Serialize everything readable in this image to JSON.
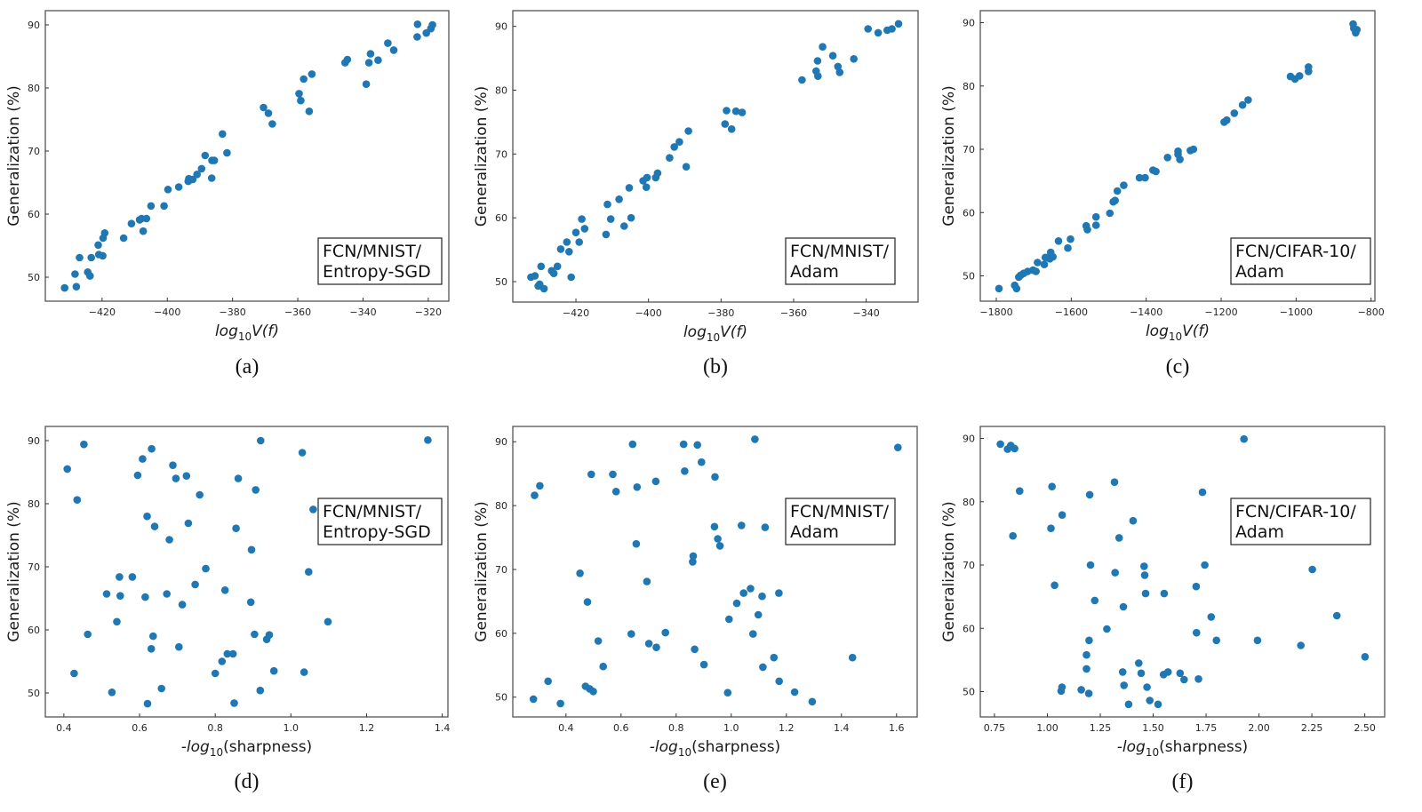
{
  "colors": {
    "marker": "#1f77b4",
    "frame": "#555555",
    "text": "#1a1a1a"
  },
  "chart_data": [
    {
      "id": "a",
      "type": "scatter",
      "caption": "(a)",
      "annotation": [
        "FCN/MNIST/",
        "Entropy-SGD"
      ],
      "ylabel": "Generalization (%)",
      "xlabel": {
        "prefix": "log",
        "sub": "10",
        "suffix": "V(f)"
      },
      "xlim": [
        -437.4,
        -313.7
      ],
      "ylim": [
        46.2,
        92.25
      ],
      "xticks": [
        -420,
        -400,
        -380,
        -360,
        -340,
        -320
      ],
      "xtick_labels": [
        "−420",
        "−400",
        "−380",
        "−360",
        "−340",
        "−320"
      ],
      "yticks": [
        50,
        60,
        70,
        80,
        90
      ],
      "ytick_labels": [
        "50",
        "60",
        "70",
        "80",
        "90"
      ],
      "annotation_position": "bottom-right",
      "x": [
        -431.5,
        -427.9,
        -428.3,
        -426.9,
        -424.4,
        -423.7,
        -423.3,
        -421.2,
        -421.0,
        -419.8,
        -419.7,
        -419.2,
        -413.4,
        -411.0,
        -408.5,
        -407.9,
        -406.4,
        -407.4,
        -405.0,
        -401.0,
        -399.8,
        -396.5,
        -393.6,
        -393.4,
        -392.2,
        -390.9,
        -389.5,
        -388.4,
        -386.3,
        -385.6,
        -386.4,
        -383.1,
        -381.7,
        -370.5,
        -369.0,
        -367.8,
        -359.6,
        -359.1,
        -356.5,
        -358.2,
        -355.7,
        -345.5,
        -344.8,
        -339.0,
        -338.2,
        -337.7,
        -335.4,
        -332.4,
        -330.6,
        -323.4,
        -323.3,
        -320.6,
        -319.2,
        -318.7
      ],
      "y": [
        48.3,
        48.5,
        50.5,
        53.1,
        50.8,
        50.2,
        53.1,
        55.1,
        53.6,
        53.4,
        56.2,
        57.0,
        56.2,
        58.5,
        59.1,
        59.3,
        59.3,
        57.3,
        61.3,
        61.3,
        63.9,
        64.3,
        65.2,
        65.6,
        65.5,
        66.3,
        67.2,
        69.3,
        68.5,
        68.5,
        65.7,
        72.7,
        69.7,
        76.9,
        76.0,
        74.3,
        79.1,
        78.0,
        76.3,
        81.4,
        82.2,
        84.0,
        84.5,
        80.6,
        84.0,
        85.4,
        84.4,
        87.1,
        86.0,
        88.1,
        90.1,
        88.7,
        89.4,
        90.0
      ]
    },
    {
      "id": "b",
      "type": "scatter",
      "caption": "(b)",
      "annotation": [
        "FCN/MNIST/",
        "Adam"
      ],
      "ylabel": "Generalization (%)",
      "xlabel": {
        "prefix": "log",
        "sub": "10",
        "suffix": "V(f)"
      },
      "xlim": [
        -437.4,
        -325.7
      ],
      "ylim": [
        46.8,
        92.46
      ],
      "xticks": [
        -420,
        -400,
        -380,
        -360,
        -340
      ],
      "xtick_labels": [
        "−420",
        "−400",
        "−380",
        "−360",
        "−340"
      ],
      "yticks": [
        50,
        60,
        70,
        80,
        90
      ],
      "ytick_labels": [
        "50",
        "60",
        "70",
        "80",
        "90"
      ],
      "annotation_position": "bottom-right",
      "x": [
        -432.4,
        -431.3,
        -430.4,
        -430.0,
        -428.8,
        -429.6,
        -426.7,
        -426.1,
        -425.1,
        -424.2,
        -422.5,
        -421.9,
        -421.3,
        -420.0,
        -419.1,
        -418.4,
        -417.6,
        -411.7,
        -411.3,
        -410.4,
        -408.1,
        -406.7,
        -405.3,
        -404.8,
        -401.5,
        -400.4,
        -400.6,
        -398.0,
        -397.5,
        -394.2,
        -392.9,
        -391.5,
        -389.6,
        -389.0,
        -378.9,
        -378.5,
        -377.1,
        -375.9,
        -374.2,
        -357.7,
        -353.8,
        -353.4,
        -353.3,
        -352.0,
        -349.2,
        -347.8,
        -347.3,
        -343.4,
        -339.5,
        -336.7,
        -334.2,
        -332.9,
        -331.1
      ],
      "y": [
        50.7,
        50.9,
        49.3,
        49.6,
        48.9,
        52.4,
        51.7,
        51.3,
        52.4,
        55.1,
        56.2,
        54.7,
        50.7,
        57.7,
        56.2,
        59.8,
        58.3,
        57.4,
        62.1,
        59.8,
        62.9,
        58.7,
        64.7,
        60.0,
        65.8,
        66.3,
        64.8,
        66.3,
        67.0,
        69.4,
        71.1,
        71.9,
        68.0,
        73.6,
        74.7,
        76.8,
        73.9,
        76.7,
        76.5,
        81.6,
        83.0,
        84.6,
        82.2,
        86.8,
        85.4,
        83.7,
        82.8,
        84.9,
        89.6,
        89.0,
        89.4,
        89.6,
        90.4
      ]
    },
    {
      "id": "c",
      "type": "scatter",
      "caption": "(c)",
      "annotation": [
        "FCN/CIFAR-10/",
        "Adam"
      ],
      "ylabel": "Generalization (%)",
      "xlabel": {
        "prefix": "log",
        "sub": "10",
        "suffix": "V(f)"
      },
      "xlim": [
        -1842.7,
        -789.8
      ],
      "ylim": [
        46.0,
        91.9
      ],
      "xticks": [
        -1800,
        -1600,
        -1400,
        -1200,
        -1000,
        -800
      ],
      "xtick_labels": [
        "−1800",
        "−1600",
        "−1400",
        "−1200",
        "−1000",
        "−800"
      ],
      "yticks": [
        50,
        60,
        70,
        80,
        90
      ],
      "ytick_labels": [
        "50",
        "60",
        "70",
        "80",
        "90"
      ],
      "annotation_position": "bottom-right",
      "x": [
        -1793,
        -1751,
        -1746,
        -1740,
        -1735,
        -1727,
        -1716,
        -1702,
        -1694,
        -1690,
        -1672,
        -1669,
        -1657,
        -1655,
        -1649,
        -1634,
        -1609,
        -1602,
        -1560,
        -1557,
        -1534,
        -1534,
        -1497,
        -1488,
        -1483,
        -1477,
        -1460,
        -1418,
        -1403,
        -1382,
        -1374,
        -1343,
        -1315,
        -1315,
        -1310,
        -1282,
        -1274,
        -1192,
        -1185,
        -1165,
        -1143,
        -1128,
        -1015,
        -1003,
        -991,
        -967,
        -967,
        -848,
        -846,
        -841,
        -838
      ],
      "y": [
        48.0,
        48.5,
        48.0,
        49.8,
        50.1,
        50.4,
        50.7,
        50.9,
        50.7,
        52.1,
        51.8,
        52.9,
        52.7,
        53.7,
        53.0,
        55.5,
        54.4,
        55.8,
        57.9,
        57.3,
        58.0,
        59.3,
        59.9,
        61.7,
        61.9,
        63.4,
        64.3,
        65.5,
        65.5,
        66.7,
        66.5,
        68.7,
        69.7,
        69.2,
        68.4,
        69.8,
        70.0,
        74.3,
        74.6,
        75.7,
        77.0,
        77.8,
        81.5,
        81.1,
        81.6,
        82.3,
        83.0,
        89.8,
        89.1,
        88.4,
        88.9
      ]
    },
    {
      "id": "d",
      "type": "scatter",
      "caption": "(d)",
      "annotation": [
        "FCN/MNIST/",
        "Entropy-SGD"
      ],
      "ylabel": "Generalization (%)",
      "xlabel": {
        "prefix": "-log",
        "sub": "10",
        "suffix": "(sharpness)"
      },
      "xlim": [
        0.351,
        1.415
      ],
      "ylim": [
        46.2,
        92.25
      ],
      "xticks": [
        0.4,
        0.6,
        0.8,
        1.0,
        1.2,
        1.4
      ],
      "xtick_labels": [
        "0.4",
        "0.6",
        "0.8",
        "1.0",
        "1.2",
        "1.4"
      ],
      "yticks": [
        50,
        60,
        70,
        80,
        90
      ],
      "ytick_labels": [
        "50",
        "60",
        "70",
        "80",
        "90"
      ],
      "annotation_position": "center-right",
      "x": [
        0.409,
        0.435,
        0.453,
        0.427,
        0.463,
        0.513,
        0.527,
        0.54,
        0.547,
        0.549,
        0.581,
        0.595,
        0.608,
        0.615,
        0.62,
        0.621,
        0.631,
        0.632,
        0.636,
        0.64,
        0.658,
        0.672,
        0.679,
        0.688,
        0.696,
        0.704,
        0.713,
        0.724,
        0.729,
        0.747,
        0.759,
        0.775,
        0.8,
        0.818,
        0.826,
        0.832,
        0.847,
        0.85,
        0.855,
        0.861,
        0.894,
        0.896,
        0.904,
        0.907,
        0.919,
        0.92,
        0.936,
        0.943,
        0.955,
        1.03,
        1.035,
        1.047,
        1.059,
        1.098,
        1.362
      ],
      "y": [
        85.5,
        80.6,
        89.4,
        53.1,
        59.3,
        65.7,
        50.1,
        61.3,
        68.4,
        65.4,
        68.4,
        84.5,
        87.1,
        65.2,
        78.0,
        48.3,
        57.0,
        88.7,
        59.0,
        76.4,
        50.7,
        65.7,
        74.3,
        86.1,
        84.0,
        57.3,
        64.0,
        84.4,
        76.9,
        67.2,
        81.4,
        69.7,
        53.1,
        55.0,
        66.3,
        56.2,
        56.2,
        48.4,
        76.1,
        84.0,
        64.4,
        72.7,
        59.3,
        82.2,
        50.4,
        90.0,
        58.5,
        59.2,
        53.5,
        88.1,
        53.3,
        69.2,
        79.1,
        61.3,
        90.1
      ]
    },
    {
      "id": "e",
      "type": "scatter",
      "caption": "(e)",
      "annotation": [
        "FCN/MNIST/",
        "Adam"
      ],
      "ylabel": "Generalization (%)",
      "xlabel": {
        "prefix": "-log",
        "sub": "10",
        "suffix": "(sharpness)"
      },
      "xlim": [
        0.207,
        1.675
      ],
      "ylim": [
        46.9,
        92.4
      ],
      "xticks": [
        0.4,
        0.6,
        0.8,
        1.0,
        1.2,
        1.4,
        1.6
      ],
      "xtick_labels": [
        "0.4",
        "0.6",
        "0.8",
        "1.0",
        "1.2",
        "1.4",
        "1.6"
      ],
      "yticks": [
        50,
        60,
        70,
        80,
        90
      ],
      "ytick_labels": [
        "50",
        "60",
        "70",
        "80",
        "90"
      ],
      "annotation_position": "center-right",
      "x": [
        0.282,
        0.286,
        0.305,
        0.335,
        0.38,
        0.451,
        0.471,
        0.478,
        0.486,
        0.499,
        0.492,
        0.517,
        0.535,
        0.57,
        0.582,
        0.637,
        0.642,
        0.655,
        0.658,
        0.694,
        0.701,
        0.726,
        0.728,
        0.761,
        0.827,
        0.831,
        0.86,
        0.862,
        0.867,
        0.877,
        0.892,
        0.901,
        0.939,
        0.941,
        0.951,
        0.959,
        0.987,
        0.992,
        1.02,
        1.037,
        1.045,
        1.07,
        1.079,
        1.086,
        1.098,
        1.112,
        1.115,
        1.123,
        1.155,
        1.173,
        1.174,
        1.23,
        1.294,
        1.44,
        1.605
      ],
      "y": [
        49.7,
        81.6,
        83.1,
        52.5,
        49.0,
        69.4,
        51.7,
        64.9,
        51.3,
        50.9,
        84.9,
        58.8,
        54.8,
        84.9,
        82.2,
        59.9,
        89.6,
        74.0,
        82.9,
        68.1,
        58.4,
        83.8,
        57.8,
        60.1,
        89.6,
        85.4,
        71.2,
        72.1,
        57.5,
        89.5,
        86.8,
        55.1,
        76.7,
        84.5,
        74.8,
        73.7,
        50.7,
        62.2,
        64.7,
        76.9,
        66.3,
        67.0,
        59.9,
        90.4,
        62.9,
        65.8,
        54.7,
        76.6,
        56.2,
        66.3,
        52.5,
        50.8,
        49.3,
        56.2,
        89.1
      ]
    },
    {
      "id": "f",
      "type": "scatter",
      "caption": "(f)",
      "annotation": [
        "FCN/CIFAR-10/",
        "Adam"
      ],
      "ylabel": "Generalization (%)",
      "xlabel": {
        "prefix": "-log",
        "sub": "10",
        "suffix": "(sharpness)"
      },
      "xlim": [
        0.683,
        2.594
      ],
      "ylim": [
        46.0,
        91.9
      ],
      "xticks": [
        0.75,
        1.0,
        1.25,
        1.5,
        1.75,
        2.0,
        2.25,
        2.5
      ],
      "xtick_labels": [
        "0.75",
        "1.00",
        "1.25",
        "1.50",
        "1.75",
        "2.00",
        "2.25",
        "2.50"
      ],
      "yticks": [
        50,
        60,
        70,
        80,
        90
      ],
      "ytick_labels": [
        "50",
        "60",
        "70",
        "80",
        "90"
      ],
      "annotation_position": "center-right",
      "x": [
        0.778,
        0.812,
        0.827,
        0.845,
        0.837,
        0.869,
        1.017,
        1.022,
        1.034,
        1.065,
        1.069,
        1.07,
        1.16,
        1.185,
        1.185,
        1.196,
        1.197,
        1.2,
        1.204,
        1.224,
        1.281,
        1.317,
        1.32,
        1.339,
        1.356,
        1.359,
        1.362,
        1.384,
        1.405,
        1.432,
        1.443,
        1.457,
        1.46,
        1.464,
        1.471,
        1.484,
        1.523,
        1.549,
        1.552,
        1.57,
        1.627,
        1.646,
        1.703,
        1.705,
        1.714,
        1.733,
        1.744,
        1.774,
        1.799,
        1.929,
        1.993,
        2.198,
        2.252,
        2.368,
        2.501
      ],
      "y": [
        89.1,
        88.3,
        88.9,
        88.4,
        74.6,
        81.7,
        75.8,
        82.4,
        66.8,
        50.1,
        50.7,
        77.9,
        50.3,
        53.6,
        55.8,
        49.7,
        58.1,
        81.1,
        70.0,
        64.4,
        59.9,
        83.1,
        68.8,
        74.3,
        53.1,
        63.4,
        51.0,
        48.0,
        77.0,
        54.5,
        52.9,
        69.8,
        68.4,
        65.5,
        50.7,
        48.6,
        48.0,
        52.7,
        65.5,
        53.1,
        52.9,
        51.9,
        66.6,
        59.3,
        52.0,
        81.5,
        70.0,
        61.8,
        58.1,
        89.9,
        58.1,
        57.3,
        69.3,
        62.0,
        55.5
      ]
    }
  ]
}
